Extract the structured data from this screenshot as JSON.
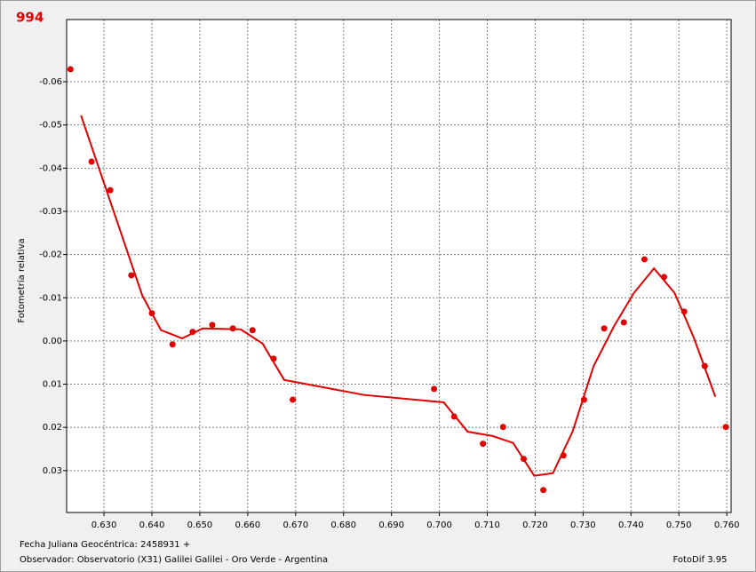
{
  "chart_data": {
    "type": "scatter",
    "title": "994",
    "y_label": "Fotometría relativa",
    "footer": [
      "Fecha Juliana Geocéntrica: 2458931 +",
      "Observador: Observatorio (X31) Galilei Galilei - Oro Verde - Argentina"
    ],
    "software": "FotoDif 3.95",
    "y_inverted": true,
    "grid": true,
    "xlim": [
      0.6222,
      0.7609
    ],
    "ylim": [
      -0.0744,
      0.0397
    ],
    "xticks": [
      {
        "value": 0.63,
        "label": "0.630"
      },
      {
        "value": 0.64,
        "label": "0.640"
      },
      {
        "value": 0.65,
        "label": "0.650"
      },
      {
        "value": 0.66,
        "label": "0.660"
      },
      {
        "value": 0.67,
        "label": "0.670"
      },
      {
        "value": 0.68,
        "label": "0.680"
      },
      {
        "value": 0.69,
        "label": "0.690"
      },
      {
        "value": 0.7,
        "label": "0.700"
      },
      {
        "value": 0.71,
        "label": "0.710"
      },
      {
        "value": 0.72,
        "label": "0.720"
      },
      {
        "value": 0.73,
        "label": "0.730"
      },
      {
        "value": 0.74,
        "label": "0.740"
      },
      {
        "value": 0.75,
        "label": "0.750"
      },
      {
        "value": 0.76,
        "label": "0.760"
      }
    ],
    "yticks": [
      -0.06,
      -0.05,
      -0.04,
      -0.03,
      -0.02,
      -0.01,
      {
        "value": 0,
        "label": "0.00"
      },
      0.01,
      0.02,
      0.03
    ],
    "series": [
      {
        "type": "scatter",
        "color": "#e00000",
        "x": [
          0.623,
          0.6274,
          0.6313,
          0.6357,
          0.64,
          0.6443,
          0.6485,
          0.6526,
          0.6569,
          0.661,
          0.6654,
          0.6694,
          0.6989,
          0.7031,
          0.7091,
          0.7133,
          0.7176,
          0.7217,
          0.7259,
          0.7302,
          0.7344,
          0.7385,
          0.7428,
          0.7469,
          0.7511,
          0.7554,
          0.7598
        ],
        "values": [
          -0.0629,
          -0.0415,
          -0.0349,
          -0.0152,
          -0.0064,
          0.0008,
          -0.0021,
          -0.0037,
          -0.0029,
          -0.0025,
          0.0041,
          0.0136,
          0.0111,
          0.0175,
          0.0238,
          0.0199,
          0.0273,
          0.0345,
          0.0265,
          0.0136,
          -0.0029,
          -0.0043,
          -0.0189,
          -0.0148,
          -0.0068,
          0.0058,
          0.0199
        ]
      },
      {
        "type": "line",
        "color": "#e00000",
        "x": [
          0.6252,
          0.638,
          0.6419,
          0.6463,
          0.6506,
          0.6585,
          0.6631,
          0.6676,
          0.6843,
          0.7009,
          0.7059,
          0.7111,
          0.7154,
          0.7198,
          0.7237,
          0.7278,
          0.7322,
          0.7365,
          0.7406,
          0.7448,
          0.7491,
          0.7531,
          0.7576
        ],
        "values": [
          -0.0522,
          -0.0105,
          -0.0025,
          -0.0006,
          -0.0029,
          -0.0027,
          0.0006,
          0.009,
          0.0125,
          0.0142,
          0.021,
          0.022,
          0.0236,
          0.0312,
          0.0306,
          0.021,
          0.0058,
          -0.0035,
          -0.0111,
          -0.0168,
          -0.0111,
          -0.0008,
          0.0129
        ]
      }
    ]
  }
}
